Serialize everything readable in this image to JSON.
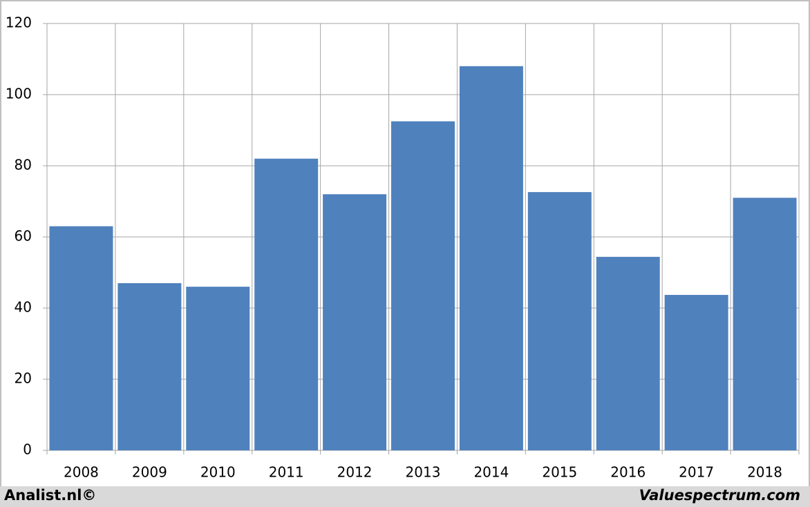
{
  "chart_data": {
    "type": "bar",
    "categories": [
      "2008",
      "2009",
      "2010",
      "2011",
      "2012",
      "2013",
      "2014",
      "2015",
      "2016",
      "2017",
      "2018"
    ],
    "values": [
      63,
      47,
      46,
      82,
      72,
      92.5,
      108,
      72.6,
      54.4,
      43.7,
      71
    ],
    "color": "#4f81bd",
    "ylim": [
      0,
      120
    ],
    "yticks": [
      0,
      20,
      40,
      60,
      80,
      100,
      120
    ],
    "grid": true
  },
  "footer": {
    "left": "Analist.nl©",
    "right": "Valuespectrum.com"
  }
}
